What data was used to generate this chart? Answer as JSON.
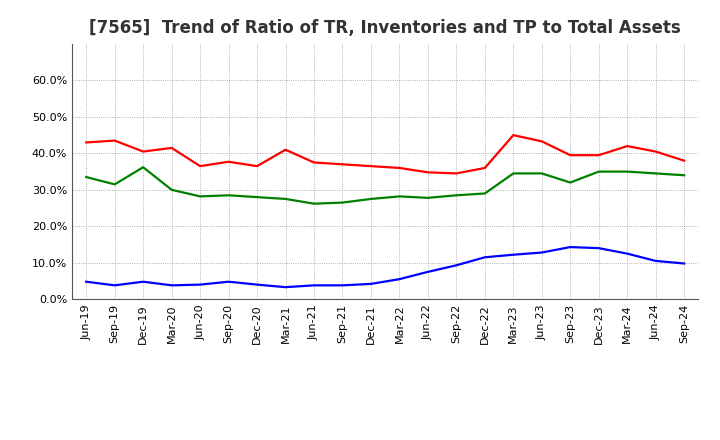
{
  "title": "[7565]  Trend of Ratio of TR, Inventories and TP to Total Assets",
  "ylim": [
    0.0,
    0.7
  ],
  "yticks": [
    0.0,
    0.1,
    0.2,
    0.3,
    0.4,
    0.5,
    0.6
  ],
  "x_labels": [
    "Jun-19",
    "Sep-19",
    "Dec-19",
    "Mar-20",
    "Jun-20",
    "Sep-20",
    "Dec-20",
    "Mar-21",
    "Jun-21",
    "Sep-21",
    "Dec-21",
    "Mar-22",
    "Jun-22",
    "Sep-22",
    "Dec-22",
    "Mar-23",
    "Jun-23",
    "Sep-23",
    "Dec-23",
    "Mar-24",
    "Jun-24",
    "Sep-24"
  ],
  "trade_receivables": [
    0.43,
    0.435,
    0.405,
    0.415,
    0.365,
    0.377,
    0.365,
    0.41,
    0.375,
    0.37,
    0.365,
    0.36,
    0.348,
    0.345,
    0.36,
    0.45,
    0.433,
    0.395,
    0.395,
    0.42,
    0.405,
    0.38
  ],
  "inventories": [
    0.048,
    0.038,
    0.048,
    0.038,
    0.04,
    0.048,
    0.04,
    0.033,
    0.038,
    0.038,
    0.042,
    0.055,
    0.075,
    0.093,
    0.115,
    0.122,
    0.128,
    0.143,
    0.14,
    0.125,
    0.105,
    0.098
  ],
  "trade_payables": [
    0.335,
    0.315,
    0.362,
    0.3,
    0.282,
    0.285,
    0.28,
    0.275,
    0.262,
    0.265,
    0.275,
    0.282,
    0.278,
    0.285,
    0.29,
    0.345,
    0.345,
    0.32,
    0.35,
    0.35,
    0.345,
    0.34
  ],
  "line_colors": {
    "trade_receivables": "#FF0000",
    "inventories": "#0000FF",
    "trade_payables": "#008000"
  },
  "line_width": 1.6,
  "background_color": "#FFFFFF",
  "plot_bg_color": "#FFFFFF",
  "grid_color": "#999999",
  "title_fontsize": 12,
  "tick_fontsize": 8,
  "legend_fontsize": 9
}
